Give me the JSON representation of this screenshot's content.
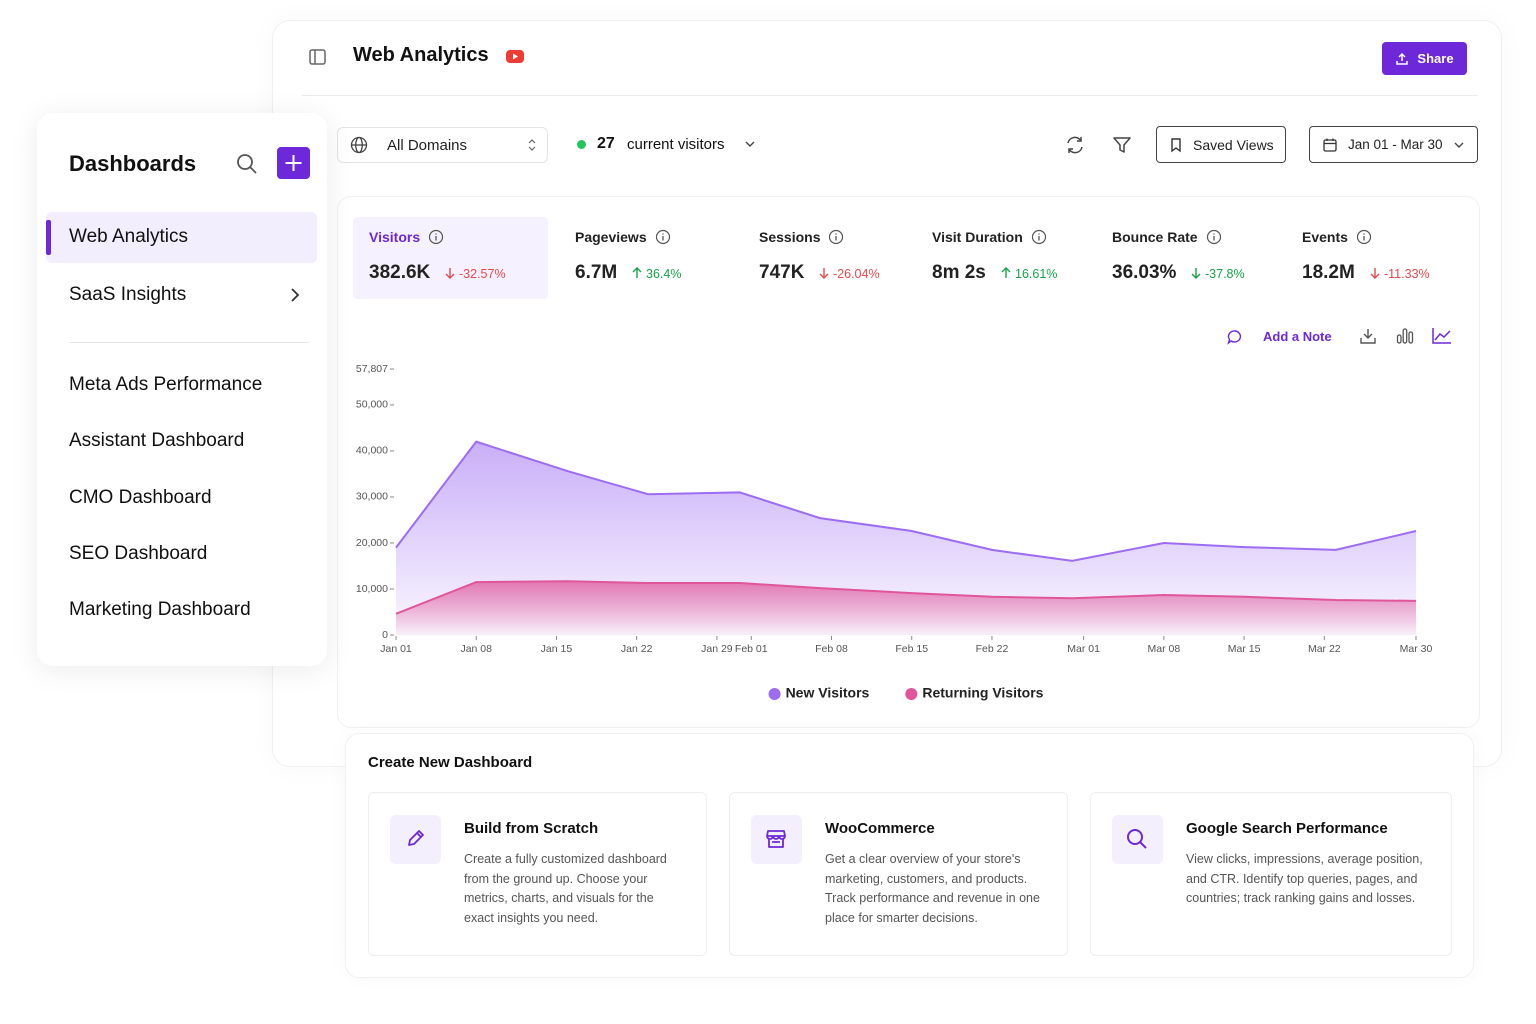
{
  "header": {
    "title": "Web Analytics",
    "share": "Share"
  },
  "sidebar": {
    "title": "Dashboards",
    "items": [
      {
        "label": "Web Analytics",
        "active": true
      },
      {
        "label": "SaaS Insights",
        "has_children": true
      }
    ],
    "more_items": [
      "Meta Ads Performance",
      "Assistant Dashboard",
      "CMO Dashboard",
      "SEO Dashboard",
      "Marketing Dashboard"
    ]
  },
  "toolbar": {
    "domain": "All Domains",
    "visitors_count": 27,
    "visitors_label": "current visitors",
    "saved_views": "Saved Views",
    "date_range": "Jan 01 - Mar 30"
  },
  "metrics": [
    {
      "label": "Visitors",
      "value": "382.6K",
      "change": "-32.57%",
      "arrow": "down",
      "change_color": "#e5484d",
      "selected": true
    },
    {
      "label": "Pageviews",
      "value": "6.7M",
      "change": "36.4%",
      "arrow": "up",
      "change_color": "#16a34a"
    },
    {
      "label": "Sessions",
      "value": "747K",
      "change": "-26.04%",
      "arrow": "down",
      "change_color": "#e5484d"
    },
    {
      "label": "Visit Duration",
      "value": "8m 2s",
      "change": "16.61%",
      "arrow": "up",
      "change_color": "#16a34a"
    },
    {
      "label": "Bounce Rate",
      "value": "36.03%",
      "change": "-37.8%",
      "arrow": "down",
      "change_color": "#16a34a"
    },
    {
      "label": "Events",
      "value": "18.2M",
      "change": "-11.33%",
      "arrow": "down",
      "change_color": "#e5484d"
    }
  ],
  "chart_actions": {
    "add_note": "Add a Note"
  },
  "chart_data": {
    "type": "area",
    "x": [
      0,
      7,
      15,
      22,
      30,
      37,
      45,
      52,
      59,
      67,
      74,
      82,
      89
    ],
    "xlim": [
      0,
      89
    ],
    "xticks": [
      {
        "value": 0,
        "label": "Jan 01"
      },
      {
        "value": 7,
        "label": "Jan 08"
      },
      {
        "value": 14,
        "label": "Jan 15"
      },
      {
        "value": 21,
        "label": "Jan 22"
      },
      {
        "value": 28,
        "label": "Jan 29"
      },
      {
        "value": 31,
        "label": "Feb 01"
      },
      {
        "value": 38,
        "label": "Feb 08"
      },
      {
        "value": 45,
        "label": "Feb 15"
      },
      {
        "value": 52,
        "label": "Feb 22"
      },
      {
        "value": 60,
        "label": "Mar 01"
      },
      {
        "value": 67,
        "label": "Mar 08"
      },
      {
        "value": 74,
        "label": "Mar 15"
      },
      {
        "value": 81,
        "label": "Mar 22"
      },
      {
        "value": 89,
        "label": "Mar 30"
      }
    ],
    "ylim": [
      0,
      57807
    ],
    "yticks": [
      0,
      {
        "value": 10000,
        "label": "10,000"
      },
      {
        "value": 20000,
        "label": "20,000"
      },
      {
        "value": 30000,
        "label": "30,000"
      },
      {
        "value": 40000,
        "label": "40,000"
      },
      {
        "value": 50000,
        "label": "50,000"
      },
      {
        "value": 57807,
        "label": "57,807"
      }
    ],
    "series": [
      {
        "name": "New Visitors",
        "color": "#9d6cf2",
        "values": [
          19000,
          42000,
          35600,
          30600,
          31000,
          25400,
          22600,
          18500,
          16100,
          20000,
          19100,
          18500,
          22600
        ]
      },
      {
        "name": "Returning Visitors",
        "color": "#e0559b",
        "values": [
          4600,
          11500,
          11700,
          11300,
          11300,
          10200,
          9100,
          8300,
          8000,
          8700,
          8300,
          7600,
          7400
        ]
      }
    ],
    "legend": "bottom"
  },
  "create": {
    "title": "Create New Dashboard",
    "cards": [
      {
        "title": "Build from Scratch",
        "description": "Create a fully customized dashboard from the ground up. Choose your metrics, charts, and visuals for the exact insights you need."
      },
      {
        "title": "WooCommerce",
        "description": "Get a clear overview of your store's marketing, customers, and products. Track performance and revenue in one place for smarter decisions."
      },
      {
        "title": "Google Search Performance",
        "description": "View clicks, impressions, average position, and CTR. Identify top queries, pages, and countries; track ranking gains and losses."
      }
    ]
  }
}
